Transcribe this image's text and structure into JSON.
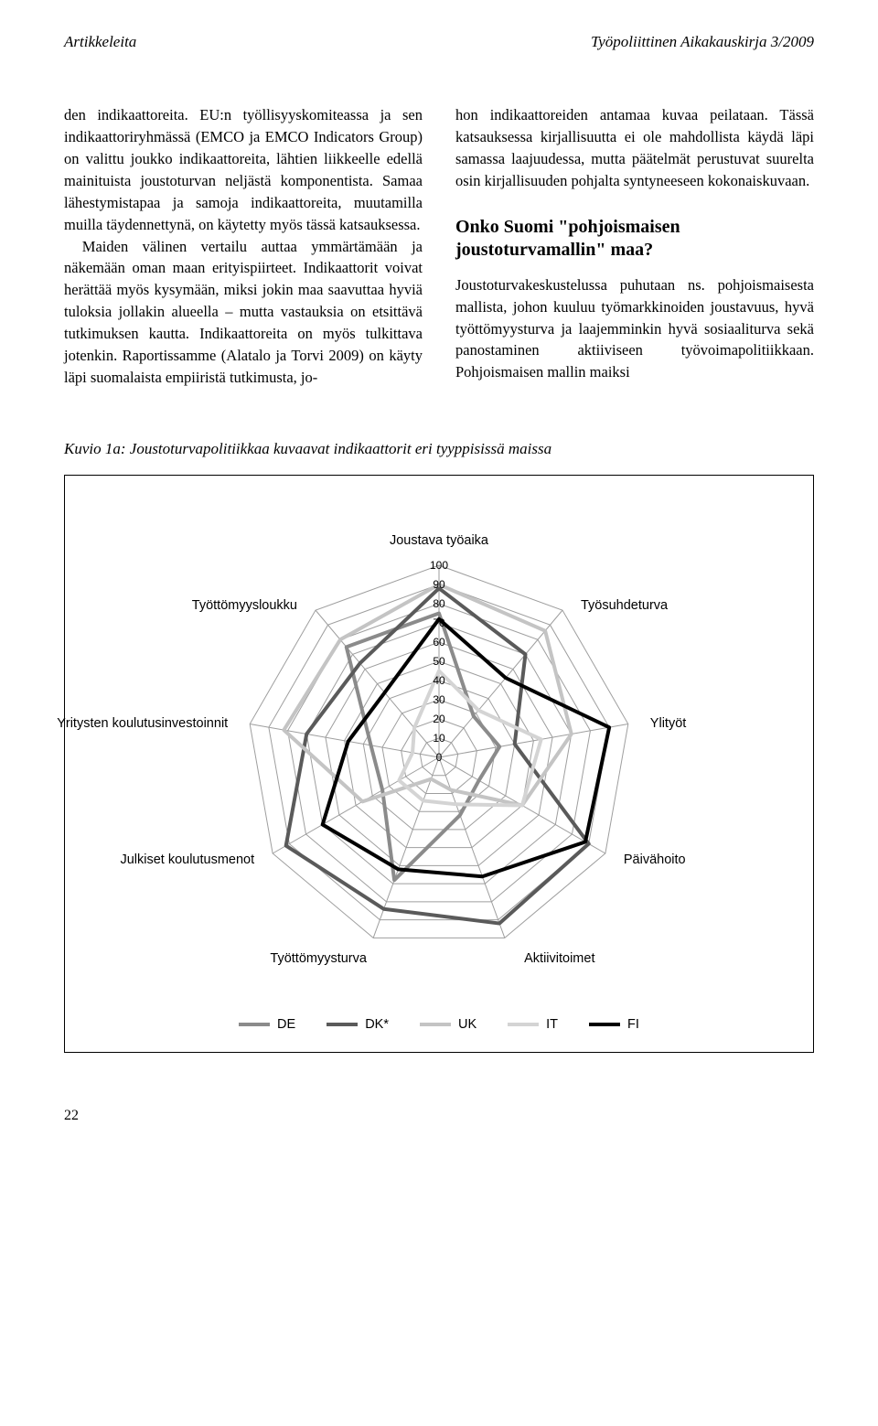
{
  "header": {
    "left": "Artikkeleita",
    "right": "Työpoliittinen Aikakauskirja 3/2009"
  },
  "left_col": {
    "p1": "den indikaattoreita. EU:n työllisyyskomiteassa ja sen indikaattoriryhmässä (EMCO ja EMCO Indicators Group) on valittu joukko indikaattoreita, lähtien liikkeelle edellä mainituista joustoturvan neljästä komponentista. Samaa lähestymistapaa ja samoja indikaattoreita, muutamilla muilla täydennettynä, on käytetty myös tässä katsauksessa.",
    "p2": "Maiden välinen vertailu auttaa ymmärtämään ja näkemään oman maan erityispiirteet. Indikaattorit voivat herättää myös kysymään, miksi jokin maa saavuttaa hyviä tuloksia jollakin alueella – mutta vastauksia on etsittävä tutkimuksen kautta. Indikaattoreita on myös tulkittava jotenkin. Raportissamme (Alatalo ja Torvi 2009) on käyty läpi suomalaista empiiristä tutkimusta, jo-"
  },
  "right_col": {
    "p1": "hon indikaattoreiden antamaa kuvaa peilataan. Tässä katsauksessa kirjallisuutta ei ole mahdollista käydä läpi samassa laajuudessa, mutta päätelmät perustuvat suurelta osin kirjallisuuden pohjalta syntyneeseen kokonaiskuvaan.",
    "h2": "Onko Suomi \"pohjoismaisen joustoturvamallin\" maa?",
    "p2": "Joustoturvakeskustelussa puhutaan ns. pohjoismaisesta mallista, johon kuuluu työmarkkinoiden joustavuus, hyvä työttömyysturva ja laajemminkin hyvä sosiaaliturva sekä panostaminen aktiiviseen työvoimapolitiikkaan. Pohjoismaisen mallin maiksi"
  },
  "figure": {
    "caption": "Kuvio 1a: Joustoturvapolitiikkaa kuvaavat indikaattorit eri tyyppisissä maissa",
    "chart": {
      "type": "radar",
      "axes": [
        "Joustava työaika",
        "Työsuhdeturva",
        "Ylityöt",
        "Päivähoito",
        "Aktiivitoimet",
        "Työttömyysturva",
        "Julkiset koulutusmenot",
        "Yritysten koulutusinvestoinnit",
        "Työttömyysloukku"
      ],
      "max": 100,
      "tick_step": 10,
      "tick_labels": [
        "0",
        "10",
        "20",
        "30",
        "40",
        "50",
        "60",
        "70",
        "80",
        "90",
        "100"
      ],
      "grid_color": "#9e9e9e",
      "grid_stroke": 1,
      "background_color": "#ffffff",
      "label_fontsize": 14.5,
      "tick_fontsize": 12,
      "series": [
        {
          "name": "DE",
          "color": "#8b8b8b",
          "width": 4,
          "values": [
            75,
            28,
            32,
            24,
            32,
            68,
            34,
            36,
            75
          ]
        },
        {
          "name": "DK*",
          "color": "#5a5a5a",
          "width": 4,
          "values": [
            88,
            70,
            40,
            90,
            92,
            84,
            92,
            70,
            64
          ]
        },
        {
          "name": "UK",
          "color": "#c4c4c4",
          "width": 4,
          "values": [
            90,
            86,
            70,
            50,
            18,
            12,
            46,
            82,
            80
          ]
        },
        {
          "name": "IT",
          "color": "#d4d4d4",
          "width": 4,
          "values": [
            45,
            32,
            54,
            50,
            26,
            24,
            24,
            14,
            20
          ]
        },
        {
          "name": "FI",
          "color": "#000000",
          "width": 4,
          "values": [
            72,
            54,
            90,
            88,
            66,
            62,
            70,
            48,
            44
          ]
        }
      ]
    }
  },
  "page_number": "22"
}
